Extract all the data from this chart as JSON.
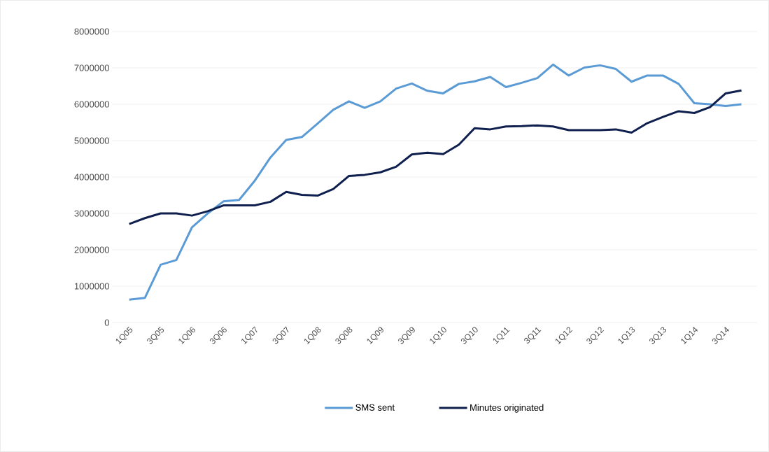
{
  "chart_data": {
    "type": "line",
    "categories": [
      "1Q05",
      null,
      "3Q05",
      null,
      "1Q06",
      null,
      "3Q06",
      null,
      "1Q07",
      null,
      "3Q07",
      null,
      "1Q08",
      null,
      "3Q08",
      null,
      "1Q09",
      null,
      "3Q09",
      null,
      "1Q10",
      null,
      "3Q10",
      null,
      "1Q11",
      null,
      "3Q11",
      null,
      "1Q12",
      null,
      "3Q12",
      null,
      "1Q13",
      null,
      "3Q13",
      null,
      "1Q14",
      null,
      "3Q14",
      null
    ],
    "series": [
      {
        "name": "SMS sent",
        "color": "#5b9bd5",
        "values": [
          630000,
          680000,
          1590000,
          1720000,
          2620000,
          3000000,
          3330000,
          3370000,
          3900000,
          4540000,
          5020000,
          5100000,
          5470000,
          5850000,
          6080000,
          5900000,
          6080000,
          6430000,
          6570000,
          6370000,
          6300000,
          6560000,
          6630000,
          6750000,
          6470000,
          6590000,
          6720000,
          7090000,
          6790000,
          7010000,
          7070000,
          6970000,
          6620000,
          6790000,
          6790000,
          6560000,
          6030000,
          6000000,
          5950000,
          6000000
        ]
      },
      {
        "name": "Minutes originated",
        "color": "#0f1f4e",
        "values": [
          2710000,
          2870000,
          3000000,
          3000000,
          2940000,
          3060000,
          3220000,
          3220000,
          3220000,
          3320000,
          3590000,
          3510000,
          3490000,
          3670000,
          4030000,
          4060000,
          4130000,
          4280000,
          4620000,
          4670000,
          4630000,
          4890000,
          5340000,
          5310000,
          5390000,
          5400000,
          5420000,
          5390000,
          5290000,
          5290000,
          5290000,
          5310000,
          5220000,
          5480000,
          5650000,
          5810000,
          5760000,
          5920000,
          6300000,
          6380000
        ]
      }
    ],
    "ylim": [
      0,
      8000000
    ],
    "yticks": [
      0,
      1000000,
      2000000,
      3000000,
      4000000,
      5000000,
      6000000,
      7000000,
      8000000
    ],
    "grid": "y",
    "legend": "bottom",
    "marker": "none",
    "line_style": "solid"
  }
}
